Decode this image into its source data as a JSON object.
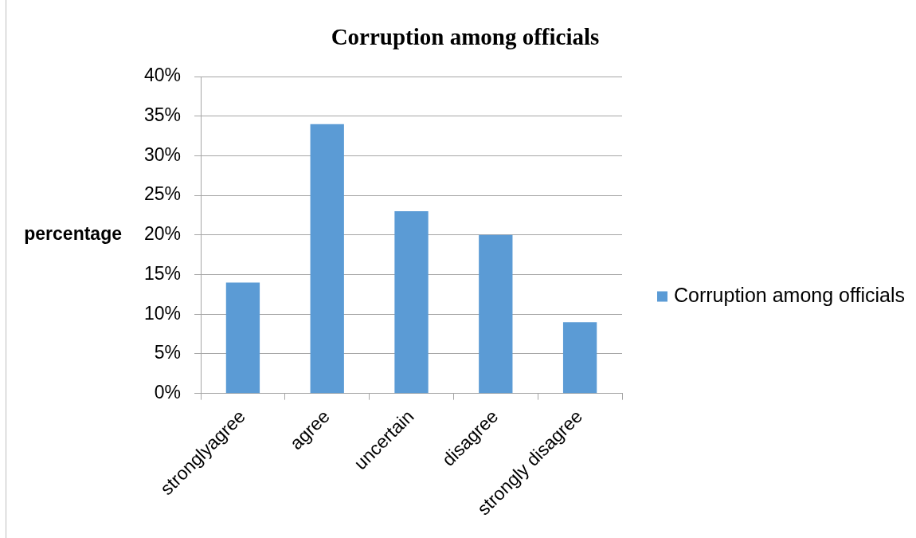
{
  "chart_data": {
    "type": "bar",
    "title": "Corruption among officials",
    "ylabel": "percentage",
    "categories": [
      "stronglyagree",
      "agree",
      "uncertain",
      "disagree",
      "strongly disagree"
    ],
    "series": [
      {
        "name": "Corruption among officials",
        "color": "#5b9bd5",
        "values": [
          14,
          34,
          23,
          20,
          9
        ]
      }
    ],
    "ylim": [
      0,
      40
    ],
    "yticks": [
      {
        "value": 0,
        "label": "0%"
      },
      {
        "value": 5,
        "label": "5%"
      },
      {
        "value": 10,
        "label": "10%"
      },
      {
        "value": 15,
        "label": "15%"
      },
      {
        "value": 20,
        "label": "20%"
      },
      {
        "value": 25,
        "label": "25%"
      },
      {
        "value": 30,
        "label": "30%"
      },
      {
        "value": 35,
        "label": "35%"
      },
      {
        "value": 40,
        "label": "40%"
      }
    ],
    "grid": "y",
    "legend": "right"
  }
}
